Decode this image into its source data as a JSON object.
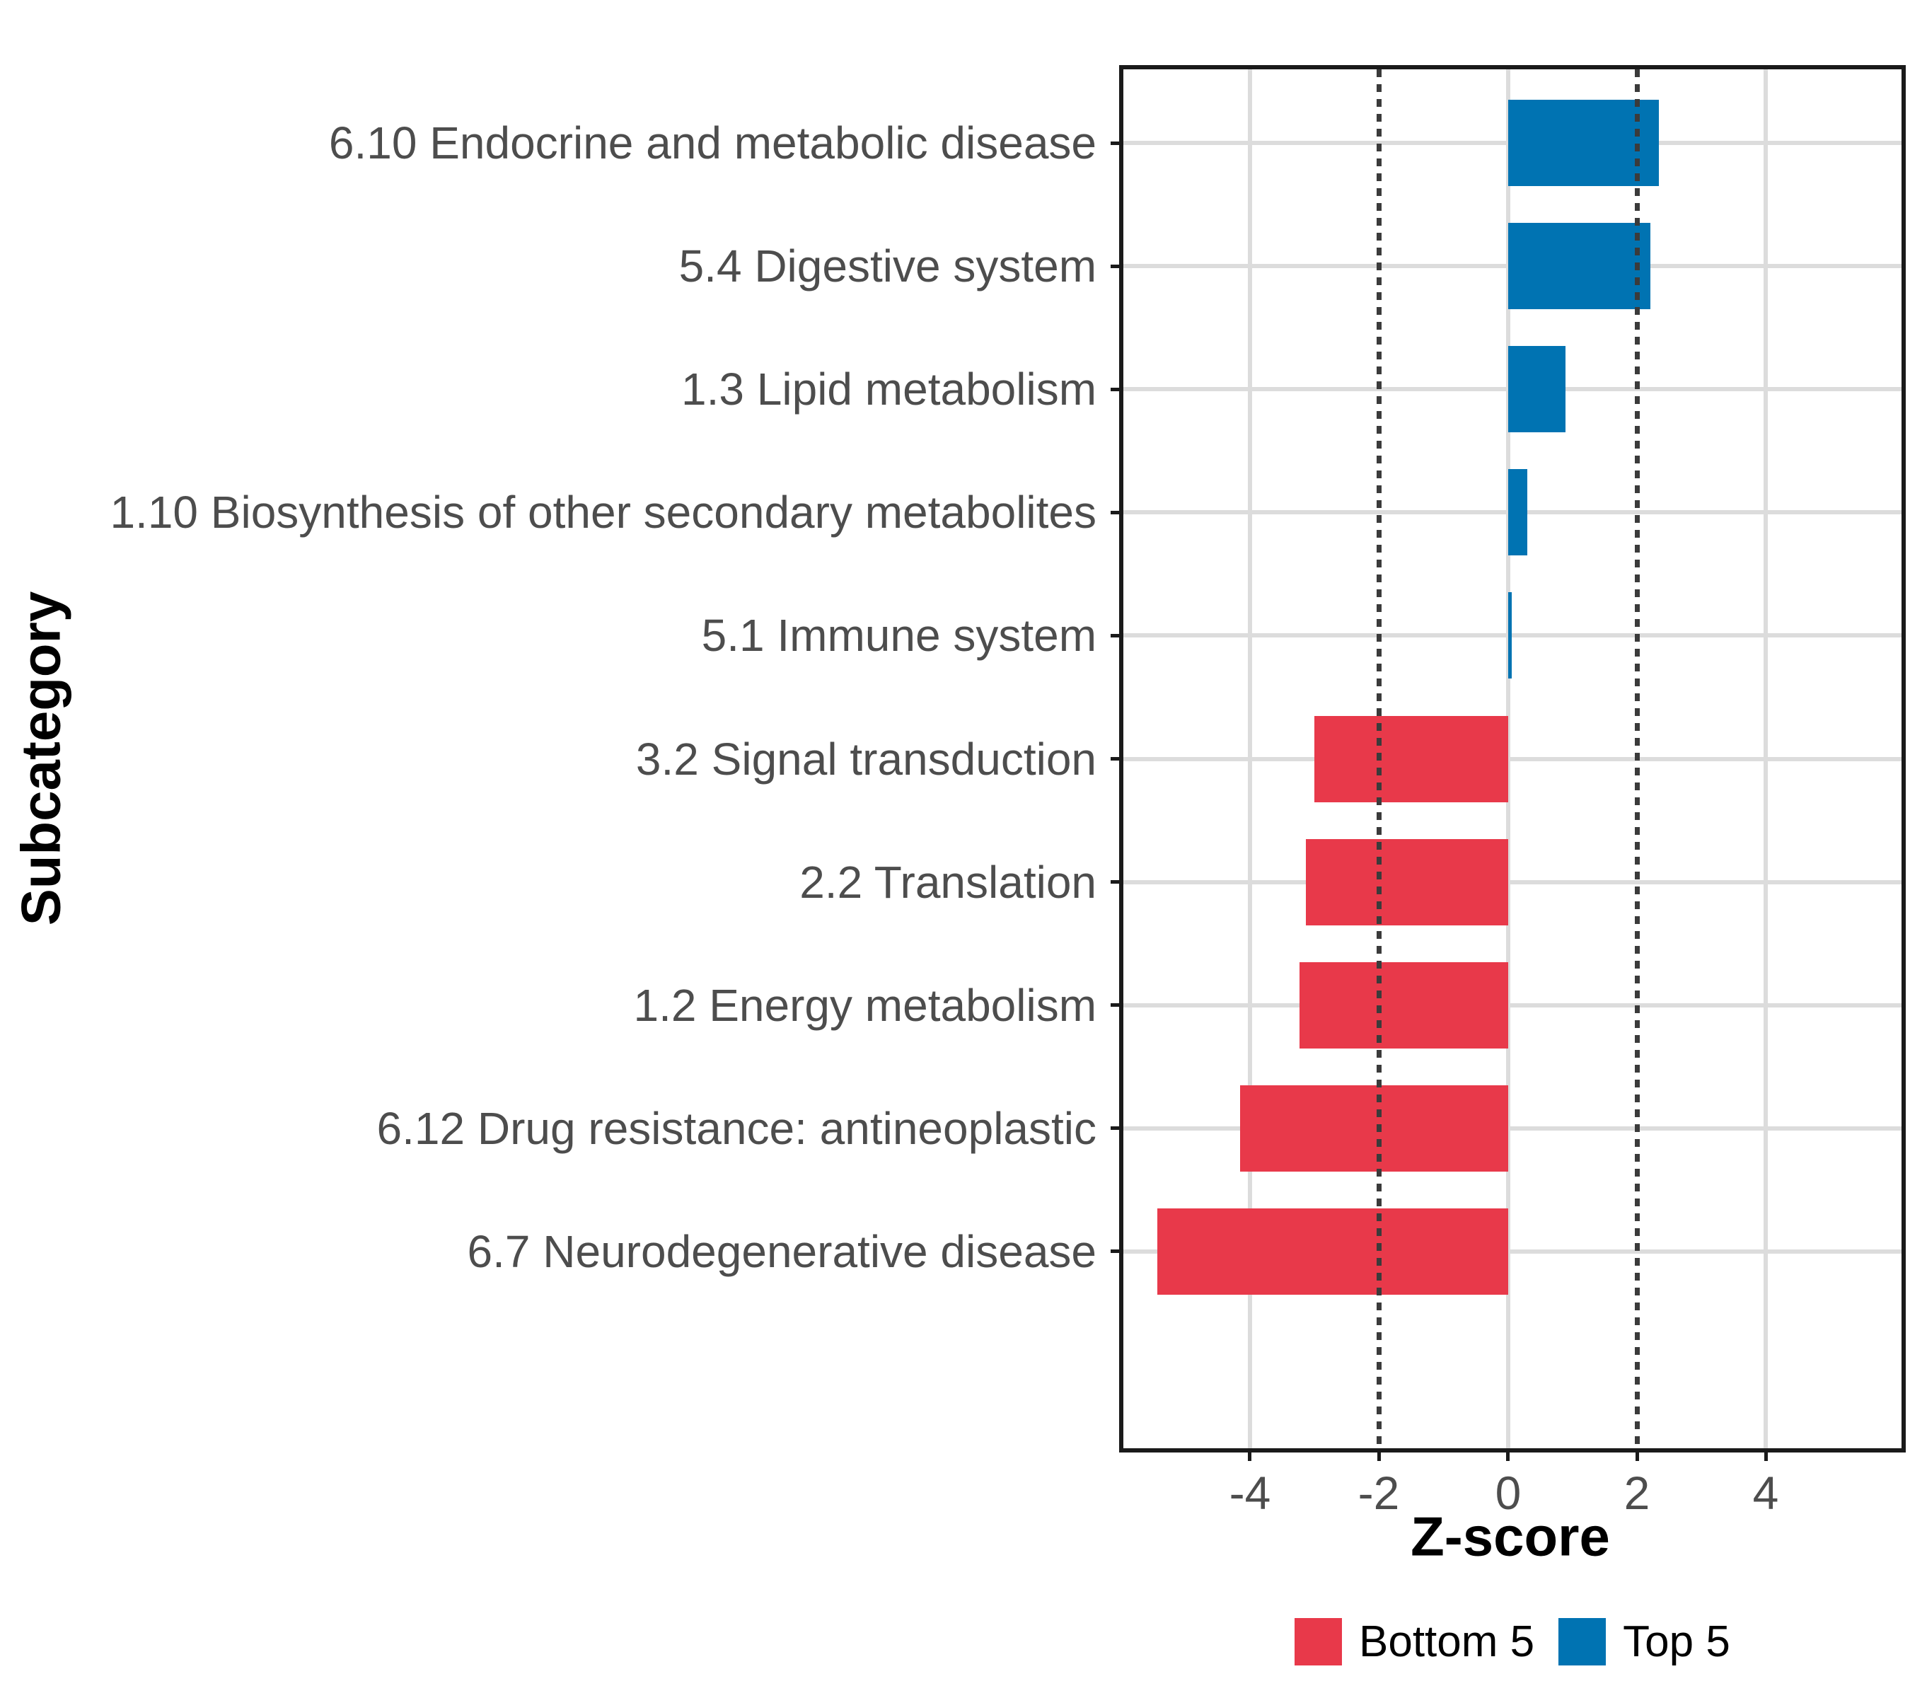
{
  "chart_data": {
    "type": "bar",
    "orientation": "horizontal",
    "title": "",
    "xlabel": "Z-score",
    "ylabel": "Subcategory",
    "categories": [
      "6.10 Endocrine and metabolic disease",
      "5.4 Digestive system",
      "1.3 Lipid metabolism",
      "1.10 Biosynthesis of other secondary metabolites",
      "5.1 Immune system",
      "3.2 Signal transduction",
      "2.2 Translation",
      "1.2 Energy metabolism",
      "6.12 Drug resistance: antineoplastic",
      "6.7 Neurodegenerative disease"
    ],
    "values": [
      2.34,
      2.21,
      0.89,
      0.3,
      0.06,
      -3.0,
      -3.13,
      -3.23,
      -4.15,
      -5.43
    ],
    "groups": [
      "Top 5",
      "Top 5",
      "Top 5",
      "Top 5",
      "Top 5",
      "Bottom 5",
      "Bottom 5",
      "Bottom 5",
      "Bottom 5",
      "Bottom 5"
    ],
    "xlim": [
      -5.96,
      6.1
    ],
    "xticks": [
      "-4",
      "-2",
      "0",
      "2",
      "4"
    ],
    "xtick_values": [
      -4,
      -2,
      0,
      2,
      4
    ],
    "solid_gridlines_x": [
      -4,
      0,
      4
    ],
    "reference_lines_x": [
      -2,
      2
    ],
    "bar_width_fraction": 0.7,
    "grid": true,
    "legend_position": "bottom-right",
    "legend": {
      "entries": [
        {
          "label": "Bottom 5",
          "color": "#e8394a"
        },
        {
          "label": "Top 5",
          "color": "#0073b2"
        }
      ]
    },
    "colors": {
      "bottom5_red": "#e8394a",
      "top5_blue": "#0073b2",
      "axis_text": "#4d4d4d",
      "gridline": "#dcdcdc",
      "reference_line": "#3b3b3b",
      "panel_border": "#1a1a1a"
    }
  }
}
